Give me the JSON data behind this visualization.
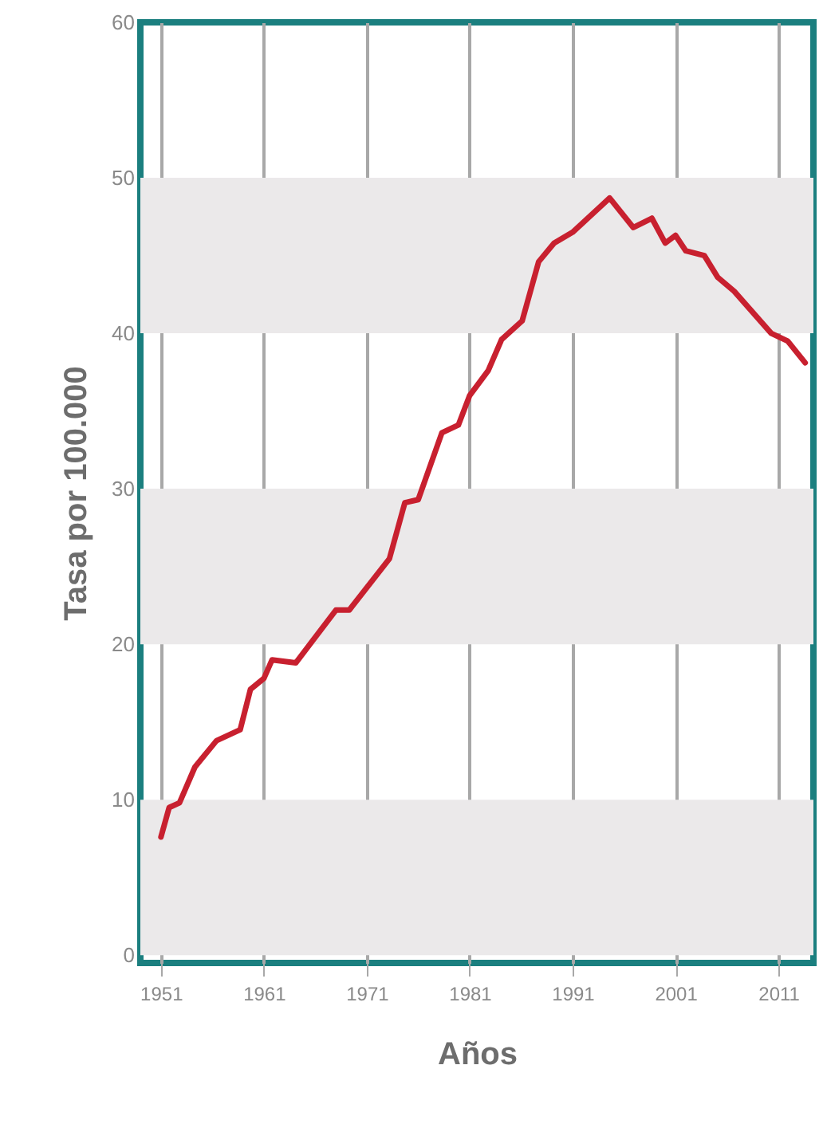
{
  "chart_data": {
    "type": "line",
    "xlabel": "Años",
    "ylabel": "Tasa por 100.000",
    "x": [
      1951,
      1951.8,
      1952.8,
      1954.3,
      1956.4,
      1958.7,
      1959.7,
      1961,
      1961.8,
      1964.1,
      1965.7,
      1968,
      1969.3,
      1973.2,
      1974.7,
      1976,
      1978.3,
      1979.9,
      1981,
      1982.8,
      1984.1,
      1986.1,
      1987.7,
      1989.2,
      1991,
      1994.6,
      1996.9,
      1998.7,
      2000,
      2001,
      2002,
      2003.8,
      2005.1,
      2006.7,
      2010.3,
      2011.9,
      2013.6
    ],
    "series": [
      {
        "color": "#c8202f",
        "values": [
          7.6,
          9.5,
          9.8,
          12.1,
          13.8,
          14.5,
          17.1,
          17.8,
          19.0,
          18.8,
          20.2,
          22.2,
          22.2,
          25.5,
          29.1,
          29.3,
          33.6,
          34.1,
          36.0,
          37.6,
          39.6,
          40.8,
          44.6,
          45.8,
          46.5,
          48.7,
          46.8,
          47.4,
          45.8,
          46.3,
          45.3,
          45.0,
          43.6,
          42.7,
          40.0,
          39.5,
          38.1
        ]
      }
    ],
    "xlim": [
      1949,
      2014.4
    ],
    "ylim": [
      -0.5,
      60
    ],
    "xticks": [
      1951,
      1961,
      1971,
      1981,
      1991,
      2001,
      2011
    ],
    "yticks": [
      0,
      10,
      20,
      30,
      40,
      50,
      60
    ],
    "bands": [
      {
        "axis": "y",
        "from": 0,
        "to": 10,
        "color": "#ebe9ea"
      },
      {
        "axis": "y",
        "from": 20,
        "to": 30,
        "color": "#ebe9ea"
      },
      {
        "axis": "y",
        "from": 40,
        "to": 50,
        "color": "#ebe9ea"
      }
    ],
    "grid": "x",
    "marker": "none",
    "line_style": "solid"
  }
}
